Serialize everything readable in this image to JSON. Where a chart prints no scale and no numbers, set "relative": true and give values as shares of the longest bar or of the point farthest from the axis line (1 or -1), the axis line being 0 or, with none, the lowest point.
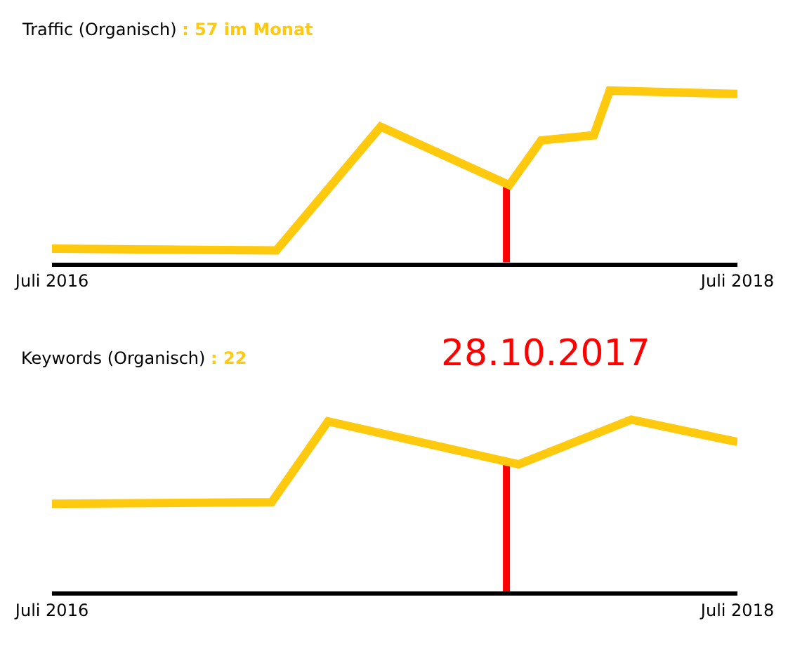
{
  "chart_data": [
    {
      "type": "line",
      "title": "Traffic (Organisch)",
      "subtitle": ": 57 im Monat",
      "relative": true,
      "x": [
        "2016-07-01",
        "2017-02-25",
        "2017-06-16",
        "2017-10-31",
        "2017-12-04",
        "2018-01-29",
        "2018-02-15",
        "2018-07-01"
      ],
      "series": [
        {
          "color": "#ffc90e",
          "values": [
            0.08,
            0.07,
            0.79,
            0.45,
            0.71,
            0.74,
            1.0,
            0.98
          ]
        }
      ],
      "xlim": [
        "2016-07-01",
        "2018-07-01"
      ],
      "xticks": [
        {
          "value": "2016-07-01",
          "label": "Juli 2016"
        },
        {
          "value": "2018-07-01",
          "label": "Juli 2018"
        }
      ],
      "ref_lines": [
        {
          "axis": "x",
          "value": "2017-10-28",
          "color": "#ff0000"
        }
      ],
      "marker": "none",
      "line_style": "solid"
    },
    {
      "type": "line",
      "title": "Keywords (Organisch)",
      "subtitle": ": 22",
      "relative": true,
      "x": [
        "2016-07-01",
        "2017-02-20",
        "2017-04-21",
        "2017-11-10",
        "2018-03-10",
        "2018-07-01"
      ],
      "series": [
        {
          "color": "#ffc90e",
          "values": [
            0.51,
            0.52,
            0.99,
            0.74,
            1.0,
            0.87
          ]
        }
      ],
      "xlim": [
        "2016-07-01",
        "2018-07-01"
      ],
      "xticks": [
        {
          "value": "2016-07-01",
          "label": "Juli 2016"
        },
        {
          "value": "2018-07-01",
          "label": "Juli 2018"
        }
      ],
      "ref_lines": [
        {
          "axis": "x",
          "value": "2017-10-28",
          "label": "28.10.2017",
          "color": "#ff0000"
        }
      ],
      "marker": "none",
      "line_style": "solid"
    }
  ]
}
